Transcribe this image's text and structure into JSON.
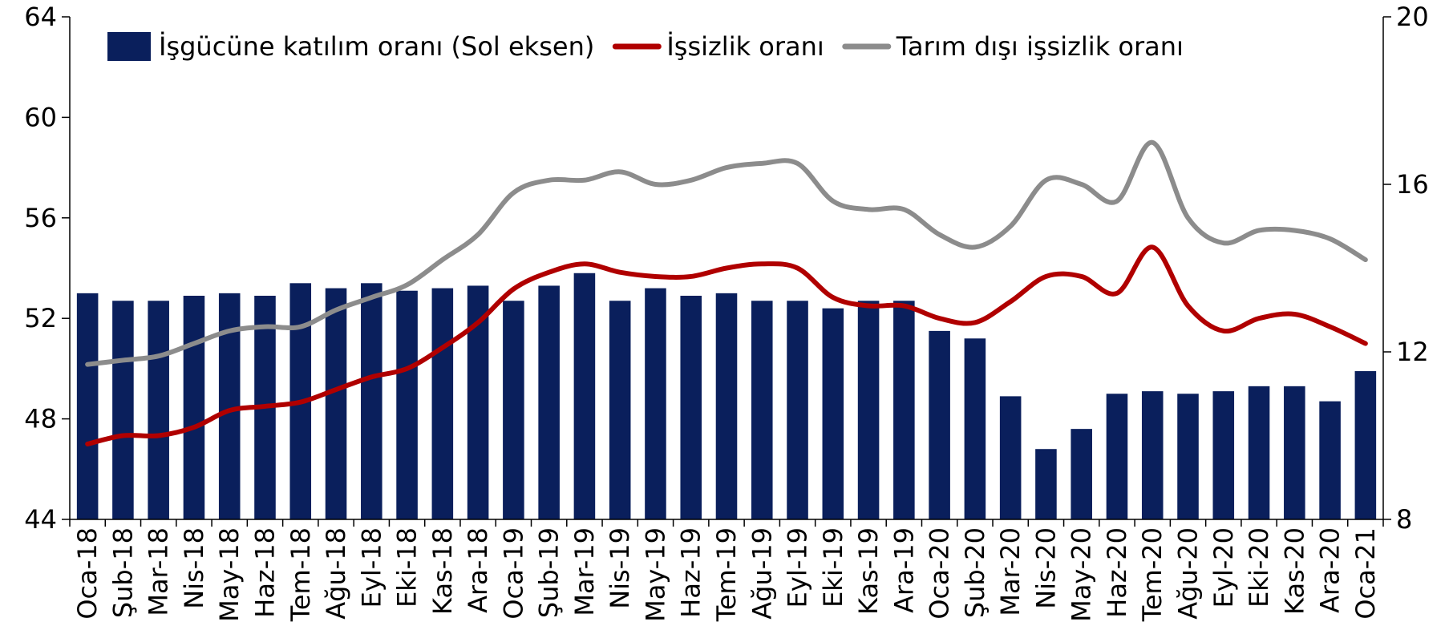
{
  "chart_data": {
    "type": "bar-line",
    "categories": [
      "Oca-18",
      "Şub-18",
      "Mar-18",
      "Nis-18",
      "May-18",
      "Haz-18",
      "Tem-18",
      "Ağu-18",
      "Eyl-18",
      "Eki-18",
      "Kas-18",
      "Ara-18",
      "Oca-19",
      "Şub-19",
      "Mar-19",
      "Nis-19",
      "May-19",
      "Haz-19",
      "Tem-19",
      "Ağu-19",
      "Eyl-19",
      "Eki-19",
      "Kas-19",
      "Ara-19",
      "Oca-20",
      "Şub-20",
      "Mar-20",
      "Nis-20",
      "May-20",
      "Haz-20",
      "Tem-20",
      "Ağu-20",
      "Eyl-20",
      "Eki-20",
      "Kas-20",
      "Ara-20",
      "Oca-21"
    ],
    "series": [
      {
        "name": "İşgücüne katılım oranı (Sol eksen)",
        "type": "bar",
        "color": "#0a1f5c",
        "values": [
          53.0,
          52.7,
          52.7,
          52.9,
          53.0,
          52.9,
          53.4,
          53.2,
          53.4,
          53.1,
          53.2,
          53.3,
          52.7,
          53.3,
          53.8,
          52.7,
          53.2,
          52.9,
          53.0,
          52.7,
          52.7,
          52.4,
          52.7,
          52.7,
          51.5,
          51.2,
          48.9,
          46.8,
          47.6,
          49.0,
          49.1,
          49.0,
          49.1,
          49.3,
          49.3,
          48.7,
          49.9
        ]
      },
      {
        "name": "İşsizlik oranı",
        "type": "line",
        "axis": "y2",
        "color": "#b00000",
        "values": [
          9.8,
          10.0,
          10.0,
          10.2,
          10.6,
          10.7,
          10.8,
          11.1,
          11.4,
          11.6,
          12.1,
          12.7,
          13.5,
          13.9,
          14.1,
          13.9,
          13.8,
          13.8,
          14.0,
          14.1,
          14.0,
          13.3,
          13.1,
          13.1,
          12.8,
          12.7,
          13.2,
          13.8,
          13.8,
          13.4,
          14.5,
          13.1,
          12.5,
          12.8,
          12.9,
          12.6,
          12.2
        ]
      },
      {
        "name": "Tarım dışı işsizlik oranı",
        "type": "line",
        "axis": "y2",
        "color": "#8c8c8c",
        "values": [
          11.7,
          11.8,
          11.9,
          12.2,
          12.5,
          12.6,
          12.6,
          13.0,
          13.3,
          13.6,
          14.2,
          14.8,
          15.8,
          16.1,
          16.1,
          16.3,
          16.0,
          16.1,
          16.4,
          16.5,
          16.5,
          15.6,
          15.4,
          15.4,
          14.8,
          14.5,
          15.0,
          16.1,
          16.0,
          15.6,
          17.0,
          15.2,
          14.6,
          14.9,
          14.9,
          14.7,
          14.2
        ]
      }
    ],
    "ylim": [
      44,
      64
    ],
    "yticks": [
      44,
      48,
      52,
      56,
      60,
      64
    ],
    "y2lim": [
      8,
      20
    ],
    "y2ticks": [
      8,
      12,
      16,
      20
    ],
    "legend": "top-left"
  }
}
